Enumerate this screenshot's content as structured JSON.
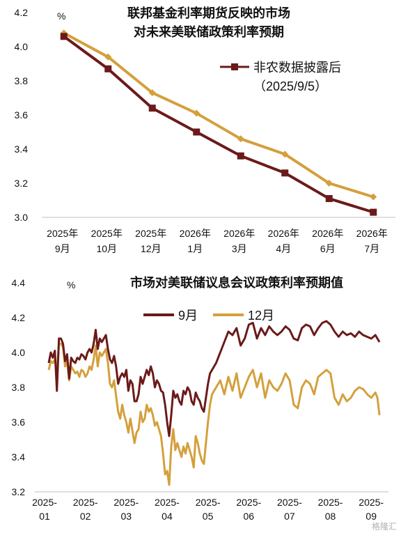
{
  "watermark": "格隆汇",
  "chart_data": [
    {
      "type": "line",
      "title_lines": [
        "联邦基金利率期货反映的市场",
        "对未来美联储政策利率预期"
      ],
      "unit_label": "%",
      "categories": [
        [
          "2025年",
          "9月"
        ],
        [
          "2025年",
          "10月"
        ],
        [
          "2025年",
          "12月"
        ],
        [
          "2026年",
          "1月"
        ],
        [
          "2026年",
          "3月"
        ],
        [
          "2026年",
          "4月"
        ],
        [
          "2026年",
          "6月"
        ],
        [
          "2026年",
          "7月"
        ]
      ],
      "ylim": [
        3.0,
        4.2
      ],
      "yticks": [
        3.0,
        3.2,
        3.4,
        3.6,
        3.8,
        4.0,
        4.2
      ],
      "ytick_labels": [
        "3.0",
        "3.2",
        "3.4",
        "3.6",
        "3.8",
        "4.0",
        "4.2"
      ],
      "legend": {
        "line1": "非农数据披露后",
        "line2": "（2025/9/5）"
      },
      "series": [
        {
          "name": "非农数据披露后（2025/9/5）",
          "color": "#6b1a1a",
          "marker": "square",
          "values": [
            4.06,
            3.87,
            3.64,
            3.5,
            3.36,
            3.26,
            3.11,
            3.03
          ]
        },
        {
          "color": "#d4a03c",
          "marker": "diamond",
          "values": [
            4.08,
            3.94,
            3.73,
            3.61,
            3.46,
            3.37,
            3.2,
            3.12
          ]
        }
      ],
      "grid": false
    },
    {
      "type": "line",
      "title": "市场对美联储议息会议政策利率预期值",
      "unit_label": "%",
      "ylim": [
        3.2,
        4.4
      ],
      "yticks": [
        3.2,
        3.4,
        3.6,
        3.8,
        4.0,
        4.2,
        4.4
      ],
      "ytick_labels": [
        "3.2",
        "3.4",
        "3.6",
        "3.8",
        "4.0",
        "4.2",
        "4.4"
      ],
      "xlim": [
        0,
        8.15
      ],
      "xtick_labels": [
        [
          "2025-",
          "01"
        ],
        [
          "2025-",
          "02"
        ],
        [
          "2025-",
          "03"
        ],
        [
          "2025-",
          "04"
        ],
        [
          "2025-",
          "05"
        ],
        [
          "2025-",
          "06"
        ],
        [
          "2025-",
          "07"
        ],
        [
          "2025-",
          "08"
        ],
        [
          "2025-",
          "09"
        ]
      ],
      "series": [
        {
          "name": "9月",
          "color": "#6b1a1a",
          "x": [
            0.0,
            0.05,
            0.1,
            0.15,
            0.2,
            0.25,
            0.3,
            0.35,
            0.4,
            0.45,
            0.5,
            0.55,
            0.6,
            0.65,
            0.7,
            0.75,
            0.8,
            0.85,
            0.9,
            0.95,
            1.0,
            1.05,
            1.1,
            1.15,
            1.2,
            1.25,
            1.3,
            1.35,
            1.4,
            1.45,
            1.5,
            1.55,
            1.6,
            1.65,
            1.7,
            1.75,
            1.8,
            1.85,
            1.9,
            1.95,
            2.0,
            2.05,
            2.1,
            2.15,
            2.2,
            2.25,
            2.3,
            2.35,
            2.4,
            2.45,
            2.5,
            2.55,
            2.6,
            2.65,
            2.7,
            2.75,
            2.8,
            2.85,
            2.9,
            2.95,
            3.0,
            3.05,
            3.1,
            3.15,
            3.2,
            3.25,
            3.3,
            3.35,
            3.4,
            3.45,
            3.5,
            3.55,
            3.6,
            3.65,
            3.7,
            3.75,
            3.8,
            3.85,
            3.9,
            3.95,
            4.0,
            4.1,
            4.2,
            4.3,
            4.4,
            4.5,
            4.6,
            4.7,
            4.8,
            4.9,
            5.0,
            5.1,
            5.2,
            5.3,
            5.4,
            5.5,
            5.6,
            5.7,
            5.8,
            5.9,
            6.0,
            6.1,
            6.2,
            6.3,
            6.4,
            6.5,
            6.6,
            6.7,
            6.8,
            6.9,
            7.0,
            7.1,
            7.2,
            7.3,
            7.4,
            7.5,
            7.6,
            7.7,
            7.8,
            7.9,
            8.0,
            8.05,
            8.1
          ],
          "values": [
            3.94,
            4.0,
            3.97,
            4.01,
            3.78,
            4.08,
            4.08,
            4.05,
            3.95,
            3.99,
            3.85,
            3.97,
            3.95,
            3.94,
            3.97,
            3.96,
            3.99,
            3.98,
            3.96,
            4.0,
            4.02,
            4.0,
            4.05,
            4.13,
            4.02,
            4.08,
            4.06,
            4.08,
            4.1,
            4.02,
            3.96,
            3.94,
            3.98,
            3.92,
            3.82,
            3.86,
            3.88,
            3.86,
            3.9,
            3.78,
            3.84,
            3.82,
            3.72,
            3.72,
            3.76,
            3.86,
            3.82,
            3.86,
            3.9,
            3.87,
            3.92,
            3.88,
            3.8,
            3.84,
            3.82,
            3.78,
            3.77,
            3.7,
            3.6,
            3.52,
            3.64,
            3.78,
            3.74,
            3.76,
            3.72,
            3.7,
            3.78,
            3.76,
            3.8,
            3.78,
            3.72,
            3.7,
            3.77,
            3.74,
            3.72,
            3.68,
            3.66,
            3.74,
            3.82,
            3.88,
            3.9,
            3.94,
            4.0,
            4.06,
            4.12,
            4.1,
            4.14,
            4.04,
            4.08,
            4.16,
            4.17,
            4.08,
            4.14,
            4.1,
            4.15,
            4.12,
            4.1,
            4.12,
            4.15,
            4.13,
            4.08,
            4.07,
            4.14,
            4.16,
            4.15,
            4.1,
            4.14,
            4.17,
            4.18,
            4.16,
            4.12,
            4.09,
            4.12,
            4.1,
            4.11,
            4.09,
            4.12,
            4.1,
            4.09,
            4.08,
            4.1,
            4.08,
            4.06
          ],
          "line_width": 3
        },
        {
          "name": "12月",
          "color": "#d4a03c",
          "x": [
            0.0,
            0.05,
            0.1,
            0.15,
            0.2,
            0.25,
            0.3,
            0.35,
            0.4,
            0.45,
            0.5,
            0.55,
            0.6,
            0.65,
            0.7,
            0.75,
            0.8,
            0.85,
            0.9,
            0.95,
            1.0,
            1.05,
            1.1,
            1.15,
            1.2,
            1.25,
            1.3,
            1.35,
            1.4,
            1.45,
            1.5,
            1.55,
            1.6,
            1.65,
            1.7,
            1.75,
            1.8,
            1.85,
            1.9,
            1.95,
            2.0,
            2.05,
            2.1,
            2.15,
            2.2,
            2.25,
            2.3,
            2.35,
            2.4,
            2.45,
            2.5,
            2.55,
            2.6,
            2.65,
            2.7,
            2.75,
            2.8,
            2.85,
            2.9,
            2.95,
            3.0,
            3.05,
            3.1,
            3.15,
            3.2,
            3.25,
            3.3,
            3.35,
            3.4,
            3.45,
            3.5,
            3.55,
            3.6,
            3.65,
            3.7,
            3.75,
            3.8,
            3.85,
            3.9,
            3.95,
            4.0,
            4.1,
            4.2,
            4.3,
            4.4,
            4.5,
            4.6,
            4.7,
            4.8,
            4.9,
            5.0,
            5.1,
            5.2,
            5.3,
            5.4,
            5.5,
            5.6,
            5.7,
            5.8,
            5.9,
            6.0,
            6.1,
            6.2,
            6.3,
            6.4,
            6.5,
            6.6,
            6.7,
            6.8,
            6.9,
            7.0,
            7.1,
            7.2,
            7.3,
            7.4,
            7.5,
            7.6,
            7.7,
            7.8,
            7.9,
            8.0,
            8.05,
            8.1
          ],
          "values": [
            3.9,
            3.95,
            3.94,
            3.96,
            3.88,
            4.05,
            4.05,
            4.03,
            3.92,
            3.95,
            3.84,
            3.92,
            3.9,
            3.88,
            3.89,
            3.86,
            3.9,
            3.89,
            3.86,
            3.88,
            3.92,
            3.9,
            3.96,
            4.04,
            3.92,
            4.0,
            3.98,
            4.0,
            4.02,
            3.94,
            3.82,
            3.8,
            3.84,
            3.75,
            3.66,
            3.62,
            3.7,
            3.64,
            3.6,
            3.54,
            3.62,
            3.55,
            3.48,
            3.54,
            3.56,
            3.66,
            3.6,
            3.62,
            3.7,
            3.66,
            3.68,
            3.64,
            3.58,
            3.6,
            3.56,
            3.52,
            3.42,
            3.3,
            3.32,
            3.24,
            3.46,
            3.56,
            3.44,
            3.48,
            3.44,
            3.4,
            3.46,
            3.42,
            3.48,
            3.44,
            3.4,
            3.34,
            3.52,
            3.48,
            3.42,
            3.38,
            3.36,
            3.48,
            3.6,
            3.7,
            3.76,
            3.8,
            3.84,
            3.76,
            3.86,
            3.78,
            3.88,
            3.74,
            3.8,
            3.86,
            3.9,
            3.8,
            3.88,
            3.74,
            3.84,
            3.8,
            3.78,
            3.82,
            3.88,
            3.84,
            3.7,
            3.68,
            3.8,
            3.84,
            3.82,
            3.76,
            3.86,
            3.88,
            3.9,
            3.88,
            3.74,
            3.7,
            3.76,
            3.72,
            3.74,
            3.78,
            3.8,
            3.79,
            3.76,
            3.74,
            3.77,
            3.74,
            3.64
          ],
          "line_width": 3
        }
      ],
      "grid": false
    }
  ]
}
